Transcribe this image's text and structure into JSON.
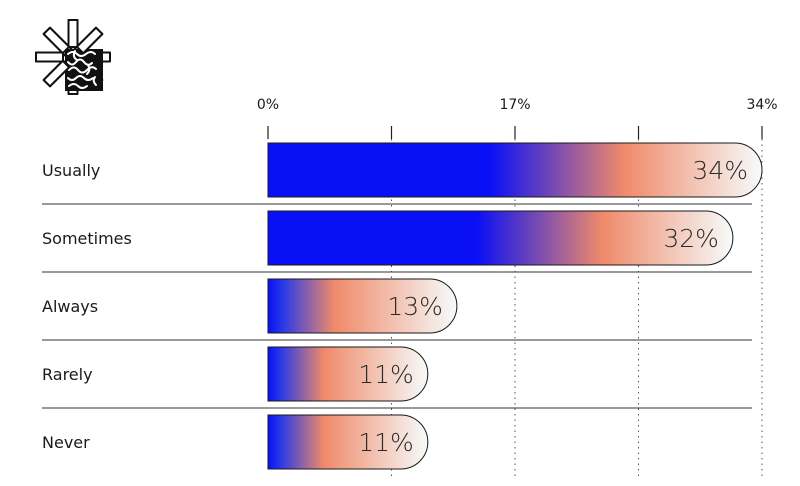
{
  "chart_data": {
    "type": "bar",
    "orientation": "horizontal",
    "categories": [
      "Usually",
      "Sometimes",
      "Always",
      "Rarely",
      "Never"
    ],
    "values": [
      34,
      32,
      13,
      11,
      11
    ],
    "value_labels": [
      "34%",
      "32%",
      "13%",
      "11%",
      "11%"
    ],
    "xlim": [
      0,
      34
    ],
    "x_ticks": [
      0,
      8.5,
      17,
      25.5,
      34
    ],
    "x_tick_labels": [
      "0%",
      "",
      "17%",
      "",
      "34%"
    ],
    "grid": "dotted vertical",
    "legend": "none"
  },
  "colors": {
    "bar_start": "#0a10f5",
    "bar_mid": "#f08a6a",
    "bar_end": "#f6fbfb",
    "row_line": "#333333",
    "text": "#1a1a1a"
  },
  "icons": {
    "logo": "asterisk-logo-icon"
  }
}
